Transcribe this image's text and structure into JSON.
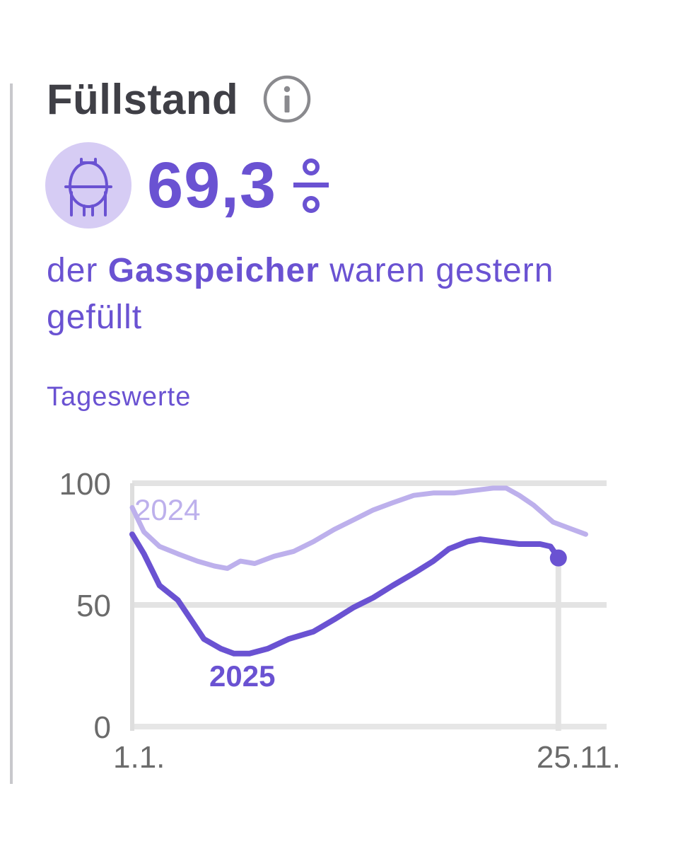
{
  "header": {
    "title": "Füllstand",
    "info_icon": "info-circle-icon"
  },
  "summary": {
    "icon": "gas-storage-tank-icon",
    "value": "69,3",
    "unit": "%",
    "text_before": "der ",
    "text_bold": "Gasspeicher",
    "text_after": " waren gestern gefüllt"
  },
  "subtitle": "Tageswerte",
  "colors": {
    "accent": "#6a52d2",
    "series_2024": "#bdb0ec",
    "badge": "#d6ccf4",
    "title": "#3f3f46",
    "axis_text": "#6b6b6b",
    "grid": "#e3e3e3"
  },
  "chart_data": {
    "type": "line",
    "x_ticks": [
      "1.1.",
      "25.11."
    ],
    "y_ticks": [
      "0",
      "50",
      "100"
    ],
    "ylim": [
      0,
      100
    ],
    "x_range": [
      "2025-01-01",
      "2025-12-31"
    ],
    "grid": true,
    "series": [
      {
        "name": "2024",
        "emphasis": "light",
        "points": [
          [
            "2025-01-01",
            90
          ],
          [
            "2025-01-10",
            80
          ],
          [
            "2025-01-22",
            74
          ],
          [
            "2025-02-05",
            71
          ],
          [
            "2025-02-20",
            68
          ],
          [
            "2025-03-05",
            66
          ],
          [
            "2025-03-15",
            65
          ],
          [
            "2025-03-25",
            68
          ],
          [
            "2025-04-05",
            67
          ],
          [
            "2025-04-20",
            70
          ],
          [
            "2025-05-05",
            72
          ],
          [
            "2025-05-20",
            76
          ],
          [
            "2025-06-05",
            81
          ],
          [
            "2025-06-20",
            85
          ],
          [
            "2025-07-05",
            89
          ],
          [
            "2025-07-20",
            92
          ],
          [
            "2025-08-05",
            95
          ],
          [
            "2025-08-20",
            96
          ],
          [
            "2025-09-05",
            96
          ],
          [
            "2025-09-20",
            97
          ],
          [
            "2025-10-05",
            98
          ],
          [
            "2025-10-15",
            98
          ],
          [
            "2025-10-25",
            95
          ],
          [
            "2025-11-05",
            91
          ],
          [
            "2025-11-20",
            84
          ],
          [
            "2025-12-05",
            81
          ],
          [
            "2025-12-15",
            79
          ]
        ]
      },
      {
        "name": "2025",
        "emphasis": "strong",
        "points": [
          [
            "2025-01-01",
            79
          ],
          [
            "2025-01-10",
            71
          ],
          [
            "2025-01-22",
            58
          ],
          [
            "2025-02-05",
            52
          ],
          [
            "2025-02-15",
            44
          ],
          [
            "2025-02-25",
            36
          ],
          [
            "2025-03-10",
            32
          ],
          [
            "2025-03-20",
            30
          ],
          [
            "2025-04-01",
            30
          ],
          [
            "2025-04-15",
            32
          ],
          [
            "2025-05-01",
            36
          ],
          [
            "2025-05-20",
            39
          ],
          [
            "2025-06-05",
            44
          ],
          [
            "2025-06-20",
            49
          ],
          [
            "2025-07-05",
            53
          ],
          [
            "2025-07-20",
            58
          ],
          [
            "2025-08-05",
            63
          ],
          [
            "2025-08-20",
            68
          ],
          [
            "2025-09-01",
            73
          ],
          [
            "2025-09-15",
            76
          ],
          [
            "2025-09-25",
            77
          ],
          [
            "2025-10-10",
            76
          ],
          [
            "2025-10-25",
            75
          ],
          [
            "2025-11-10",
            75
          ],
          [
            "2025-11-18",
            74
          ],
          [
            "2025-11-24",
            69.3
          ]
        ]
      }
    ],
    "annotations": [
      {
        "text": "2024",
        "series": "2024"
      },
      {
        "text": "2025",
        "series": "2025"
      }
    ],
    "last_point": {
      "date": "2025-11-24",
      "value": 69.3
    }
  }
}
